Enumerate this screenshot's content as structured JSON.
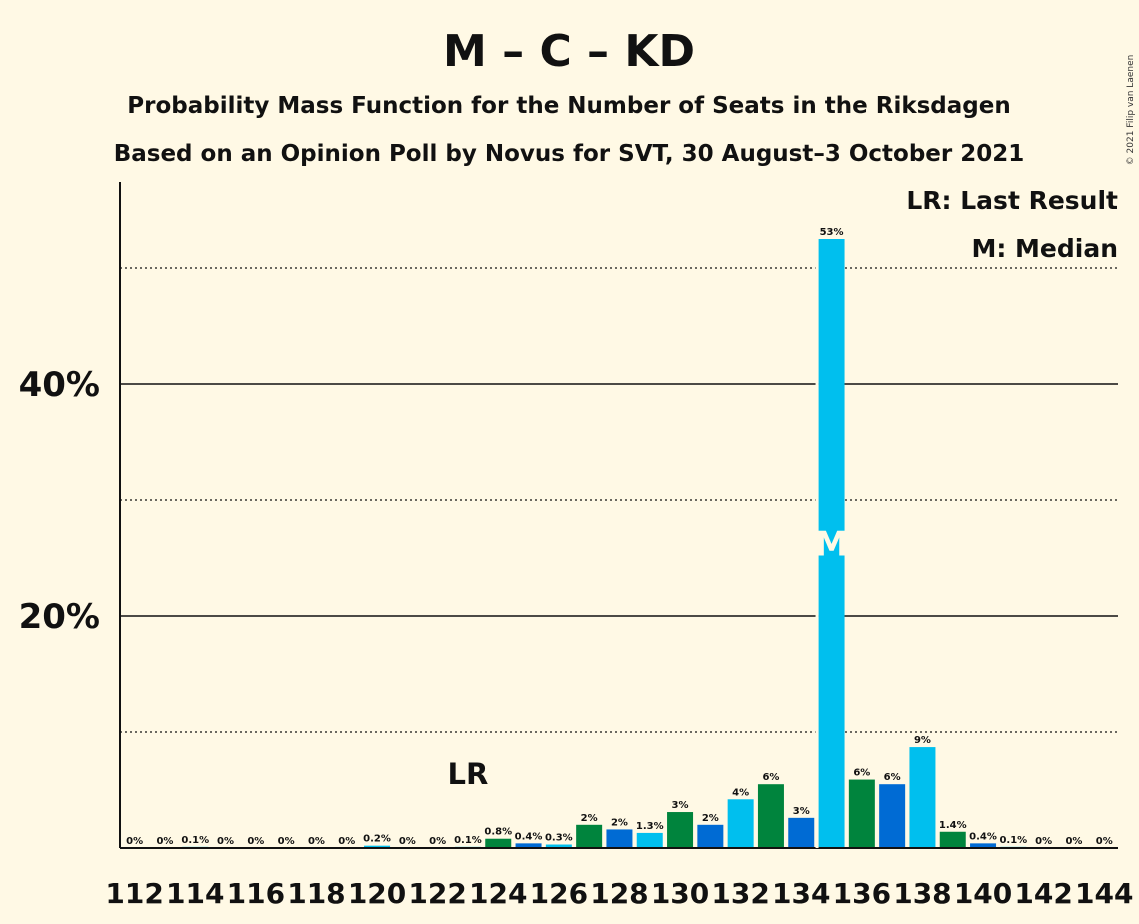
{
  "chart_data": {
    "type": "bar",
    "title": "M – C – KD",
    "subtitle": "Probability Mass Function for the Number of Seats in the Riksdagen",
    "subtitle2": "Based on an Opinion Poll by Novus for SVT, 30 August–3 October 2021",
    "copyright": "© 2021 Filip van Laenen",
    "legend": {
      "last_result": "LR: Last Result",
      "median": "M: Median",
      "placement": "top-right"
    },
    "last_result_label": "LR",
    "last_result_seat": 123,
    "median_label": "M",
    "median_seat": 135,
    "ylim": [
      0,
      0.57
    ],
    "yticks": [
      {
        "value": 0.2,
        "label": "20%"
      },
      {
        "value": 0.4,
        "label": "40%"
      }
    ],
    "minor_gridlines": [
      0.1,
      0.3,
      0.5
    ],
    "xtick_labels": [
      "112",
      "114",
      "116",
      "118",
      "120",
      "122",
      "124",
      "126",
      "128",
      "130",
      "132",
      "134",
      "136",
      "138",
      "140",
      "142",
      "144"
    ],
    "seats": [
      112,
      113,
      114,
      115,
      116,
      117,
      118,
      119,
      120,
      121,
      122,
      123,
      124,
      125,
      126,
      127,
      128,
      129,
      130,
      131,
      132,
      133,
      134,
      135,
      136,
      137,
      138,
      139,
      140,
      141,
      142,
      143,
      144
    ],
    "values": [
      0,
      0,
      0.001,
      0,
      0,
      0,
      0,
      0,
      0.002,
      0,
      0,
      0.001,
      0.008,
      0.004,
      0.003,
      0.02,
      0.016,
      0.013,
      0.031,
      0.02,
      0.042,
      0.055,
      0.026,
      0.525,
      0.059,
      0.055,
      0.087,
      0.014,
      0.004,
      0.001,
      0,
      0,
      0
    ],
    "labels": [
      "0%",
      "0%",
      "0.1%",
      "0%",
      "0%",
      "0%",
      "0%",
      "0%",
      "0.2%",
      "0%",
      "0%",
      "0.1%",
      "0.8%",
      "0.4%",
      "0.3%",
      "2%",
      "2%",
      "1.3%",
      "3%",
      "2%",
      "4%",
      "6%",
      "3%",
      "53%",
      "6%",
      "6%",
      "9%",
      "1.4%",
      "0.4%",
      "0.1%",
      "0%",
      "0%",
      "0%"
    ],
    "bar_colors": [
      "#00843d",
      "#006bd4",
      "#00bfee"
    ],
    "grid": true
  }
}
